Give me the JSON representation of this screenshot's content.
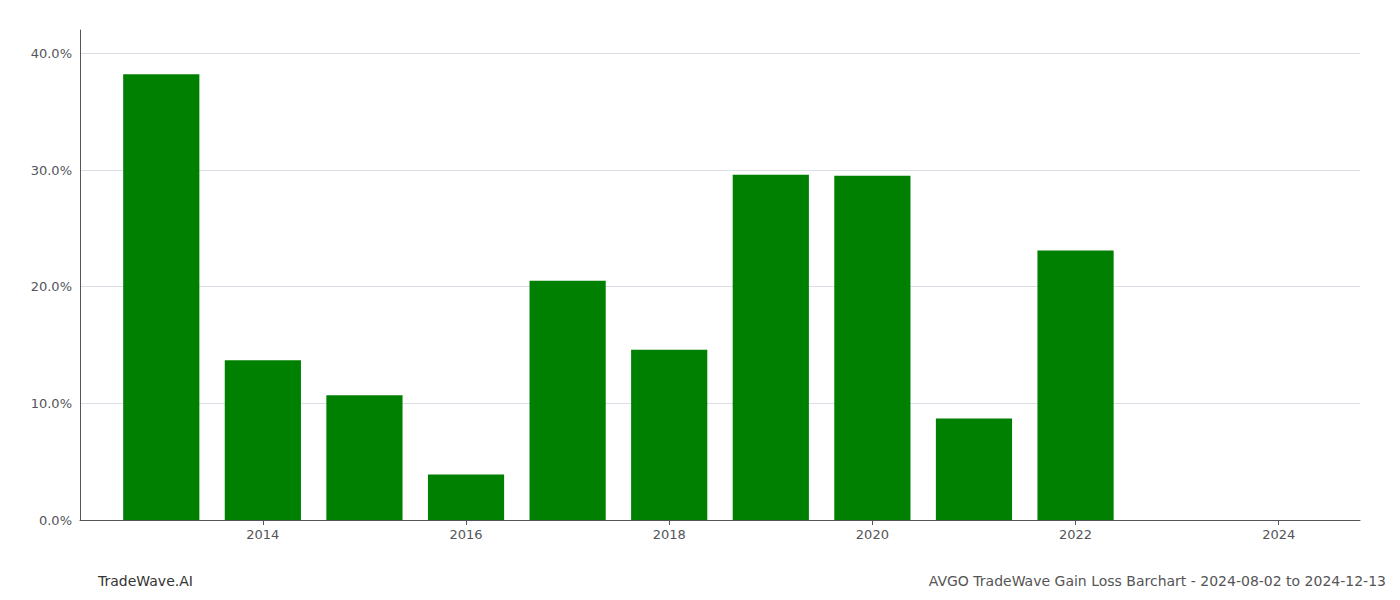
{
  "chart_data": {
    "type": "bar",
    "x": [
      2013,
      2014,
      2015,
      2016,
      2017,
      2018,
      2019,
      2020,
      2021,
      2022,
      2023
    ],
    "values": [
      0.382,
      0.137,
      0.107,
      0.039,
      0.205,
      0.146,
      0.296,
      0.295,
      0.087,
      0.231,
      0.0
    ],
    "color": "#008000",
    "xlim": [
      2012.2,
      2024.8
    ],
    "xticks": [
      2014,
      2016,
      2018,
      2020,
      2022,
      2024
    ],
    "ylim": [
      0,
      0.42
    ],
    "yticks": [
      {
        "value": 0.0,
        "label": "0.0%"
      },
      {
        "value": 0.1,
        "label": "10.0%"
      },
      {
        "value": 0.2,
        "label": "20.0%"
      },
      {
        "value": 0.3,
        "label": "30.0%"
      },
      {
        "value": 0.4,
        "label": "40.0%"
      }
    ],
    "grid": true,
    "annotations": [
      "TradeWave.AI",
      "AVGO TradeWave Gain Loss Barchart - 2024-08-02 to 2024-12-13"
    ]
  }
}
